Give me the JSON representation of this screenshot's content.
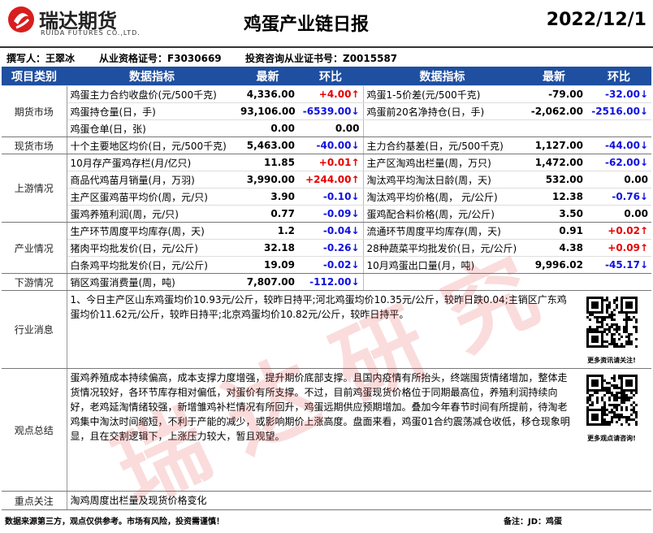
{
  "header": {
    "logo": "瑞达期货",
    "logo_sub": "RUIDA FUTURES CO.,LTD.",
    "title": "鸡蛋产业链日报",
    "date": "2022/12/1"
  },
  "author": {
    "writer": "撰写人：王翠冰",
    "license": "从业资格证号：F3030669",
    "advisor": "投资咨询从业证书号：Z0015587"
  },
  "table": {
    "columns": [
      "项目类别",
      "数据指标",
      "最新",
      "环比",
      "数据指标",
      "最新",
      "环比"
    ],
    "sections": [
      {
        "category": "期货市场",
        "rows": [
          [
            "鸡蛋主力合约收盘价(元/500千克)",
            "4,336.00",
            "+4.00↑",
            "鸡蛋1-5价差(元/500千克)",
            "-79.00",
            "-32.00↓"
          ],
          [
            "鸡蛋持仓量(日，手)",
            "93,106.00",
            "-6539.00↓",
            "鸡蛋前20名净持仓(日，手)",
            "-2,062.00",
            "-2516.00↓"
          ],
          [
            "鸡蛋仓单(日，张)",
            "0.00",
            "0.00"
          ]
        ]
      },
      {
        "category": "现货市场",
        "rows": [
          [
            "十个主要地区均价(日，元/500千克)",
            "5,463.00",
            "-40.00↓",
            "主力合约基差(日，元/500千克)",
            "1,127.00",
            "-44.00↓"
          ]
        ]
      },
      {
        "category": "上游情况",
        "rows": [
          [
            "10月存产蛋鸡存栏(月/亿只)",
            "11.85",
            "+0.01↑",
            "主产区淘鸡出栏量(周，万只)",
            "1,472.00",
            "-62.00↓"
          ],
          [
            "商品代鸡苗月销量(月，万羽)",
            "3,990.00",
            "+244.00↑",
            "淘汰鸡平均淘汰日龄(周，天)",
            "532.00",
            "0.00"
          ],
          [
            "主产区蛋鸡苗平均价(周，元/只)",
            "3.90",
            "-0.10↓",
            "淘汰鸡平均价格(周， 元/公斤)",
            "12.38",
            "-0.76↓"
          ],
          [
            "蛋鸡养殖利润(周，元/只)",
            "0.77",
            "-0.09↓",
            "蛋鸡配合料价格(周，元/公斤)",
            "3.50",
            "0.00"
          ]
        ]
      },
      {
        "category": "产业情况",
        "rows": [
          [
            "生产环节周度平均库存(周，天)",
            "1.2",
            "-0.04↓",
            "流通环节周度平均库存(周，天)",
            "0.91",
            "+0.02↑"
          ],
          [
            "猪肉平均批发价(日，元/公斤)",
            "32.18",
            "-0.26↓",
            "28种蔬菜平均批发价(日，元/公斤)",
            "4.38",
            "+0.09↑"
          ],
          [
            "白条鸡平均批发价(日，元/公斤)",
            "19.09",
            "-0.02↓",
            "10月鸡蛋出口量(月，吨)",
            "9,996.02",
            "-45.17↓"
          ]
        ]
      },
      {
        "category": "下游情况",
        "rows": [
          [
            "销区鸡蛋消费量(周，吨)",
            "7,807.00",
            "-112.00↓"
          ]
        ]
      }
    ],
    "notes": [
      {
        "category": "行业消息",
        "text": "1、今日主产区山东鸡蛋均价10.93元/公斤，较昨日持平;河北鸡蛋均价10.35元/公斤，较昨日跌0.04;主销区广东鸡蛋均价11.62元/公斤，较昨日持平;北京鸡蛋均价10.82元/公斤，较昨日持平。",
        "qr_caption": "更多资讯请关注!"
      },
      {
        "category": "观点总结",
        "text": "蛋鸡养殖成本持续偏高，成本支撑力度增强，提升期价底部支撑。且国内疫情有所抬头，终端囤货情绪增加，整体走货情况较好，各环节库存相对偏低，对蛋价有所支撑。不过，目前鸡蛋现货价格位于同期最高位，养殖利润持续向好，老鸡延淘情绪较强，新增雏鸡补栏情况有所回升，鸡蛋远期供应预期增加。叠加今年春节时间有所提前，待淘老鸡集中淘汰时间缩短，不利于产能的减少，或影响期价上涨高度。盘面来看，鸡蛋01合约震荡减仓收低，移仓现象明显，且在交割逻辑下，上涨压力较大，暂且观望。",
        "qr_caption": "更多观点请咨询!"
      },
      {
        "category": "重点关注",
        "text": "淘鸡周度出栏量及现货价格变化"
      }
    ]
  },
  "footer": {
    "disclaimer": "数据来源第三方，观点仅供参考。市场有风险，投资需谨慎！",
    "remark": "备注：JD：鸡蛋"
  },
  "watermark": "瑞 达 研 究"
}
